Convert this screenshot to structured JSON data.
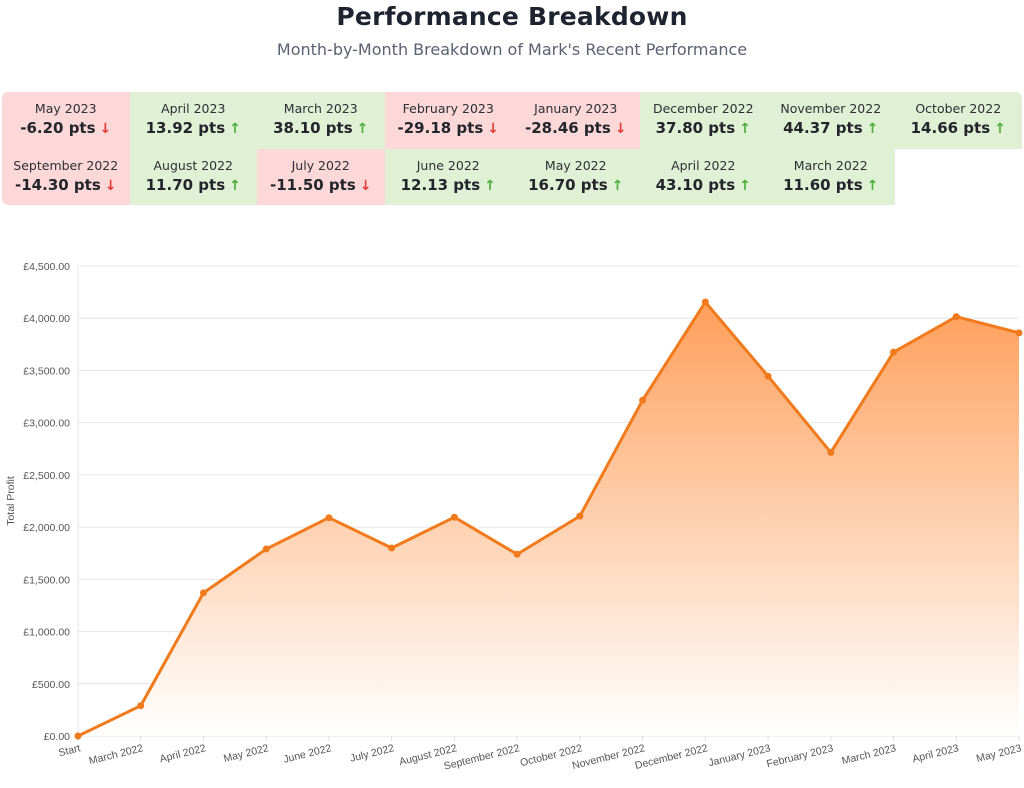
{
  "header": {
    "title": "Performance Breakdown",
    "subtitle": "Month-by-Month Breakdown of Mark's Recent Performance"
  },
  "colors": {
    "up": "#dff0d4",
    "down": "#fdd8d9",
    "line": "#f07a1c",
    "fill": "#ffa160"
  },
  "months": [
    {
      "label": "May 2023",
      "value": "-6.20 pts",
      "trend": "down"
    },
    {
      "label": "April 2023",
      "value": "13.92 pts",
      "trend": "up"
    },
    {
      "label": "March 2023",
      "value": "38.10 pts",
      "trend": "up"
    },
    {
      "label": "February 2023",
      "value": "-29.18 pts",
      "trend": "down"
    },
    {
      "label": "January 2023",
      "value": "-28.46 pts",
      "trend": "down"
    },
    {
      "label": "December 2022",
      "value": "37.80 pts",
      "trend": "up"
    },
    {
      "label": "November 2022",
      "value": "44.37 pts",
      "trend": "up"
    },
    {
      "label": "October 2022",
      "value": "14.66 pts",
      "trend": "up"
    },
    {
      "label": "September 2022",
      "value": "-14.30 pts",
      "trend": "down"
    },
    {
      "label": "August 2022",
      "value": "11.70 pts",
      "trend": "up"
    },
    {
      "label": "July 2022",
      "value": "-11.50 pts",
      "trend": "down"
    },
    {
      "label": "June 2022",
      "value": "12.13 pts",
      "trend": "up"
    },
    {
      "label": "May 2022",
      "value": "16.70 pts",
      "trend": "up"
    },
    {
      "label": "April 2022",
      "value": "43.10 pts",
      "trend": "up"
    },
    {
      "label": "March 2022",
      "value": "11.60 pts",
      "trend": "up"
    }
  ],
  "chart_data": {
    "type": "area",
    "ylabel": "Total Profit",
    "xlabel": "",
    "ylim": [
      0,
      4500
    ],
    "grid": true,
    "yticks": [
      "£0.00",
      "£500.00",
      "£1,000.00",
      "£1,500.00",
      "£2,000.00",
      "£2,500.00",
      "£3,000.00",
      "£3,500.00",
      "£4,000.00",
      "£4,500.00"
    ],
    "categories": [
      "Start",
      "March 2022",
      "April 2022",
      "May 2022",
      "June 2022",
      "July 2022",
      "August 2022",
      "September 2022",
      "October 2022",
      "November 2022",
      "December 2022",
      "January 2023",
      "February 2023",
      "March 2023",
      "April 2023",
      "May 2023"
    ],
    "values": [
      0,
      290,
      1370,
      1790,
      2090,
      1800,
      2095,
      1740,
      2105,
      3215,
      4155,
      3445,
      2715,
      3675,
      4015,
      3860
    ]
  }
}
